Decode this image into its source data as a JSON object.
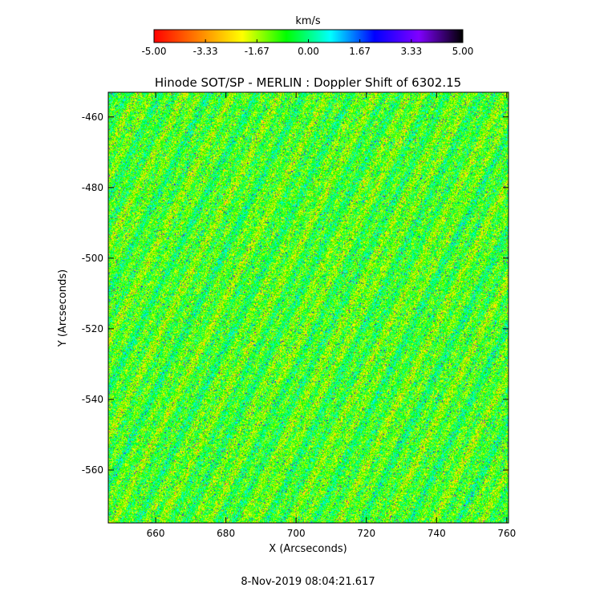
{
  "colorbar": {
    "unit_label": "km/s",
    "range": [
      -5.0,
      5.0
    ],
    "tick_labels": [
      "-5.00",
      "-3.33",
      "-1.67",
      "0.00",
      "1.67",
      "3.33",
      "5.00"
    ],
    "colormap": [
      "#ff0000",
      "#ff8000",
      "#ffff00",
      "#00ff00",
      "#00ffff",
      "#0000ff",
      "#8000ff",
      "#000000"
    ]
  },
  "chart_data": {
    "type": "heatmap",
    "title": "Hinode SOT/SP - MERLIN : Doppler Shift of 6302.15",
    "xlabel": "X (Arcseconds)",
    "ylabel": "Y (Arcseconds)",
    "xlim": [
      646.5,
      760.5
    ],
    "ylim": [
      -575,
      -453
    ],
    "xticks": [
      660,
      680,
      700,
      720,
      740,
      760
    ],
    "yticks": [
      -460,
      -480,
      -500,
      -520,
      -540,
      -560
    ],
    "xtick_labels": [
      "660",
      "680",
      "700",
      "720",
      "740",
      "760"
    ],
    "ytick_labels": [
      "-460",
      "-480",
      "-500",
      "-520",
      "-540",
      "-560"
    ],
    "value_range": [
      -5.0,
      5.0
    ],
    "grid": false
  },
  "footer": {
    "timestamp": "8-Nov-2019 08:04:21.617"
  }
}
